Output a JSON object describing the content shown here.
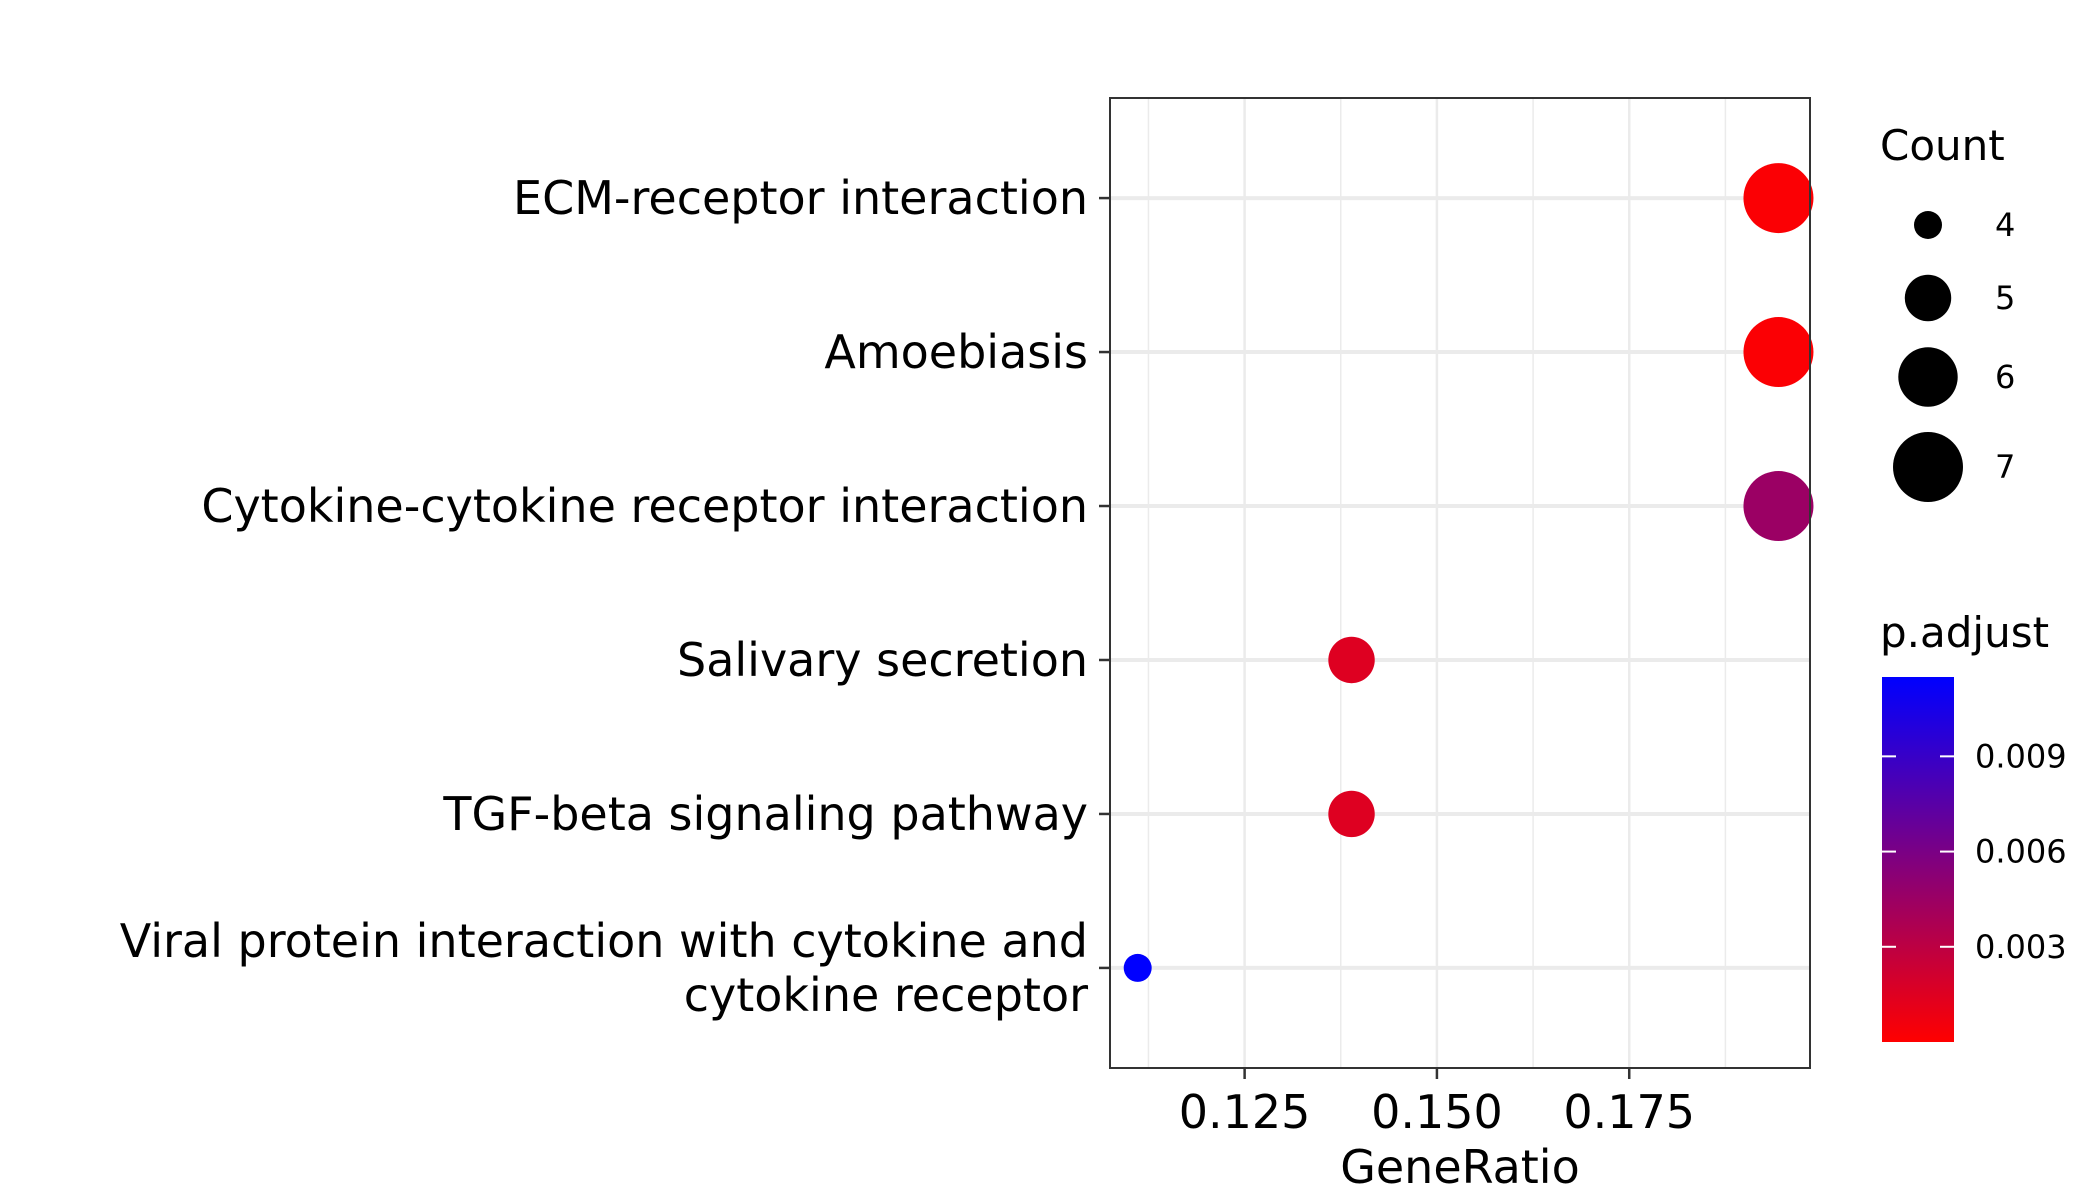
{
  "chart_data": {
    "type": "scatter",
    "xlabel": "GeneRatio",
    "ylabel": "",
    "title": "",
    "xlim": [
      0.1075,
      0.1985
    ],
    "x_ticks": [
      0.125,
      0.15,
      0.175
    ],
    "x_tick_labels": [
      "0.125",
      "0.150",
      "0.175"
    ],
    "categories": [
      "ECM-receptor interaction",
      "Amoebiasis",
      "Cytokine-cytokine receptor interaction",
      "Salivary secretion",
      "TGF-beta signaling pathway",
      "Viral protein interaction with cytokine and\ncytokine receptor"
    ],
    "points": [
      {
        "category": "ECM-receptor interaction",
        "gene_ratio": 0.1944,
        "count": 7,
        "p_adjust": 0.0002
      },
      {
        "category": "Amoebiasis",
        "gene_ratio": 0.1944,
        "count": 7,
        "p_adjust": 0.0002
      },
      {
        "category": "Cytokine-cytokine receptor interaction",
        "gene_ratio": 0.1944,
        "count": 7,
        "p_adjust": 0.0045
      },
      {
        "category": "Salivary secretion",
        "gene_ratio": 0.1389,
        "count": 5,
        "p_adjust": 0.0015
      },
      {
        "category": "TGF-beta signaling pathway",
        "gene_ratio": 0.1389,
        "count": 5,
        "p_adjust": 0.0015
      },
      {
        "category": "Viral protein interaction with cytokine and\ncytokine receptor",
        "gene_ratio": 0.1111,
        "count": 4,
        "p_adjust": 0.0115
      }
    ],
    "size_legend": {
      "title": "Count",
      "values": [
        4,
        5,
        6,
        7
      ],
      "labels": [
        "4",
        "5",
        "6",
        "7"
      ]
    },
    "color_legend": {
      "title": "p.adjust",
      "range": [
        0.0,
        0.0115
      ],
      "ticks": [
        0.003,
        0.006,
        0.009
      ],
      "tick_labels": [
        "0.003",
        "0.006",
        "0.009"
      ],
      "low_color": "#FF0000",
      "high_color": "#0000FF"
    },
    "grid": true,
    "legend_position": "right"
  }
}
